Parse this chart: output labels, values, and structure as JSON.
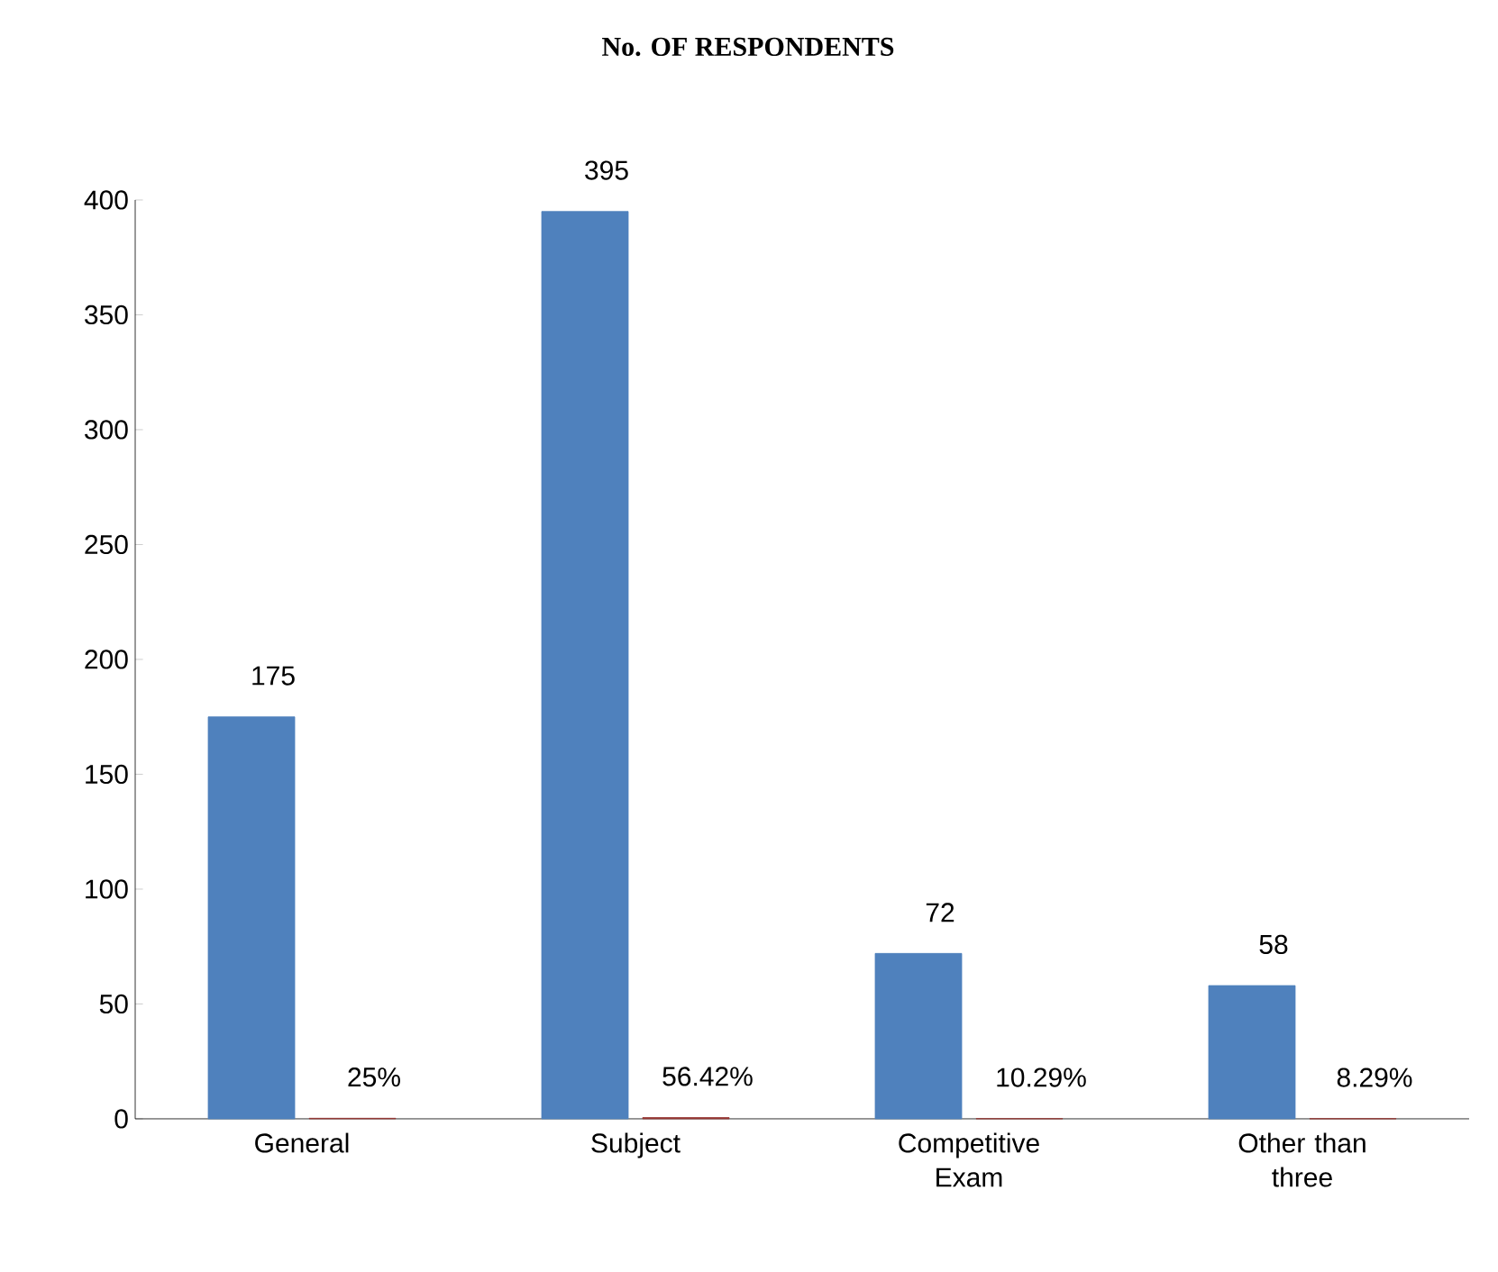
{
  "chart_data": {
    "type": "bar",
    "title": "No. OF RESPONDENTS",
    "categories": [
      "General",
      "Subject",
      "Competitive Exam",
      "Other than three"
    ],
    "series": [
      {
        "color": "#4f81bd",
        "values": [
          175,
          395,
          72,
          58
        ],
        "value_labels": [
          "175",
          "395",
          "72",
          "58"
        ]
      },
      {
        "color": "#953735",
        "values": [
          0.25,
          0.5642,
          0.1029,
          0.0829
        ],
        "value_labels": [
          "25%",
          "56.42%",
          "10.29%",
          "8.29%"
        ]
      }
    ],
    "ylim": [
      0,
      400
    ],
    "yticks": [
      0,
      50,
      100,
      150,
      200,
      250,
      300,
      350,
      400
    ]
  }
}
